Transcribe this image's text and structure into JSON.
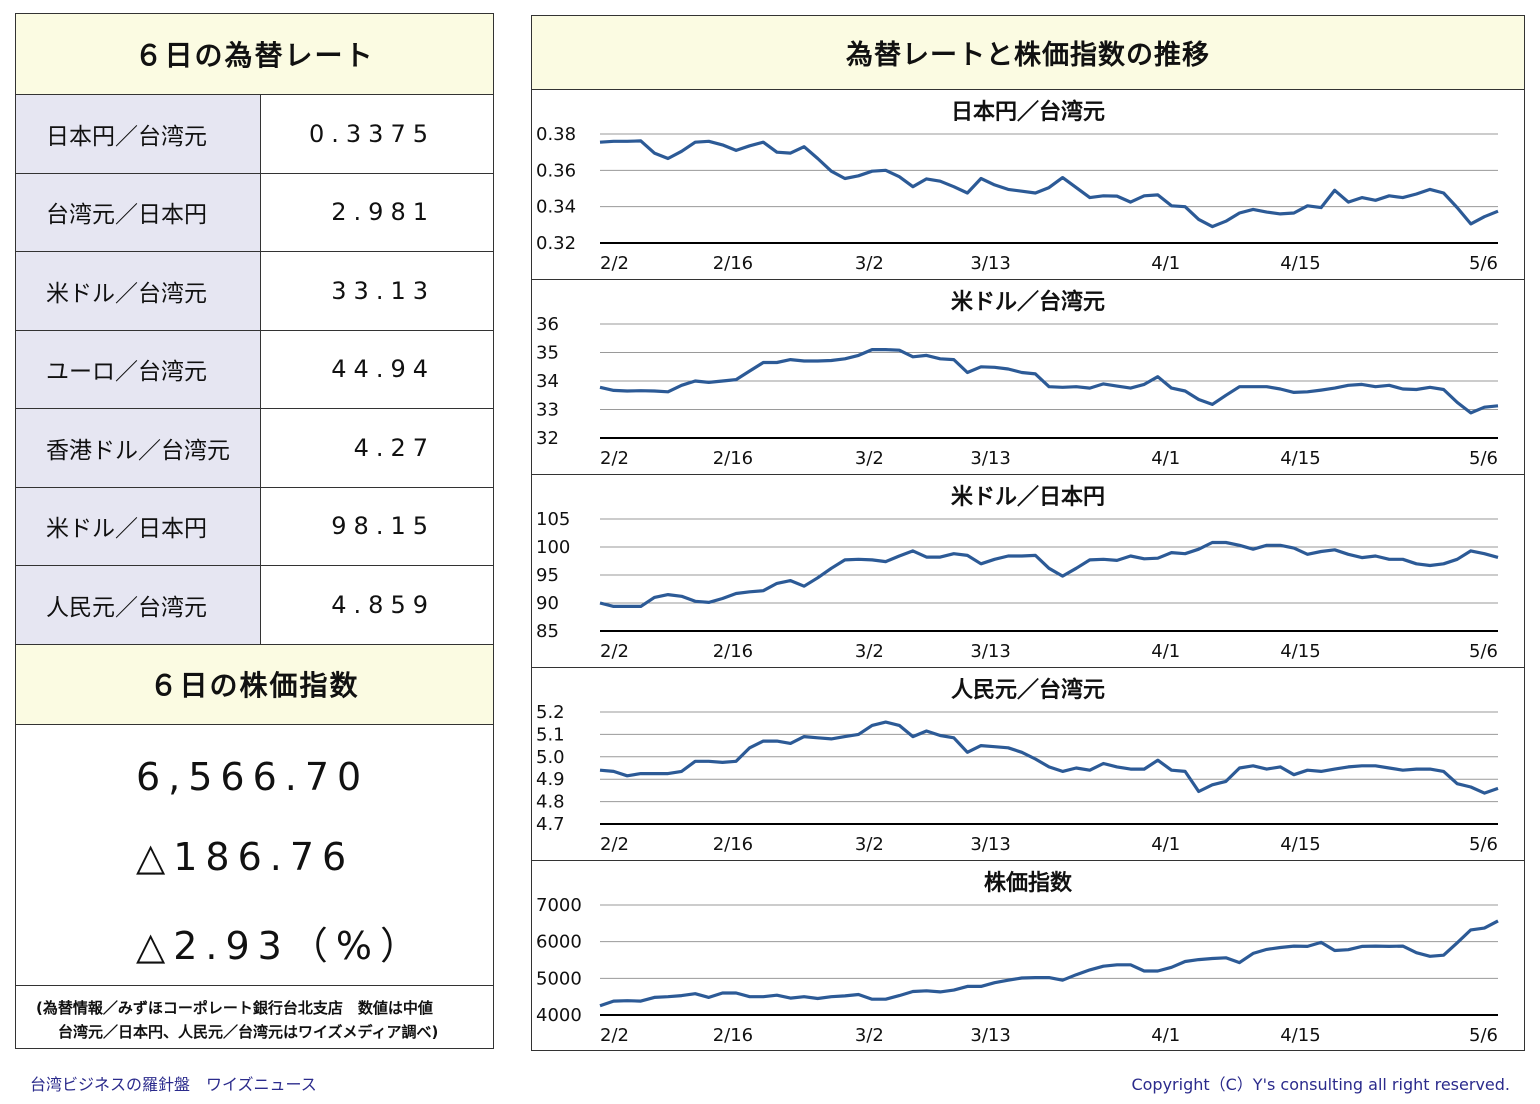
{
  "left": {
    "rates_title": "６日の為替レート",
    "rates": [
      {
        "label": "日本円／台湾元",
        "value": "0.3375"
      },
      {
        "label": "台湾元／日本円",
        "value": "2.981"
      },
      {
        "label": "米ドル／台湾元",
        "value": "33.13"
      },
      {
        "label": "ユーロ／台湾元",
        "value": "44.94"
      },
      {
        "label": "香港ドル／台湾元",
        "value": "4.27"
      },
      {
        "label": "米ドル／日本円",
        "value": "98.15"
      },
      {
        "label": "人民元／台湾元",
        "value": "4.859"
      }
    ],
    "stock_title": "６日の株価指数",
    "stock_value": "6,566.70",
    "stock_change": "△186.76",
    "stock_change_pct": "△2.93（%）",
    "note_line1": "(為替情報／みずほコーポレート銀行台北支店　数値は中値",
    "note_line2": "台湾元／日本円、人民元／台湾元はワイズメディア調べ)"
  },
  "right": {
    "title": "為替レートと株価指数の推移"
  },
  "footer": {
    "left": "台湾ビジネスの羅針盤　ワイズニュース",
    "right": "Copyright（C）Y's consulting all right reserved."
  },
  "colors": {
    "line": "#2c5a96",
    "header_bg": "#fbfbe2",
    "label_bg": "#e6e6f2",
    "footer_text": "#2b2b8c"
  },
  "chart_data": [
    {
      "type": "line",
      "title": "日本円／台湾元",
      "x_ticks": [
        "2/2",
        "2/16",
        "3/2",
        "3/13",
        "4/1",
        "4/15",
        "5/6"
      ],
      "y_ticks": [
        "0.38",
        "0.36",
        "0.34",
        "0.32"
      ],
      "ylim": [
        0.32,
        0.38
      ],
      "grid": true,
      "values": [
        0.3755,
        0.376,
        0.376,
        0.3762,
        0.3695,
        0.3665,
        0.3705,
        0.3755,
        0.376,
        0.374,
        0.371,
        0.3735,
        0.3755,
        0.37,
        0.3695,
        0.373,
        0.3665,
        0.3595,
        0.3555,
        0.357,
        0.3595,
        0.36,
        0.3565,
        0.351,
        0.3553,
        0.354,
        0.351,
        0.3475,
        0.3555,
        0.352,
        0.3495,
        0.3485,
        0.3475,
        0.3505,
        0.356,
        0.3505,
        0.345,
        0.346,
        0.3458,
        0.3425,
        0.346,
        0.3465,
        0.3405,
        0.34,
        0.333,
        0.329,
        0.332,
        0.3365,
        0.3385,
        0.337,
        0.336,
        0.3365,
        0.3405,
        0.3395,
        0.349,
        0.3425,
        0.345,
        0.3435,
        0.346,
        0.345,
        0.347,
        0.3495,
        0.3475,
        0.3395,
        0.3305,
        0.3345,
        0.3375
      ]
    },
    {
      "type": "line",
      "title": "米ドル／台湾元",
      "x_ticks": [
        "2/2",
        "2/16",
        "3/2",
        "3/13",
        "4/1",
        "4/15",
        "5/6"
      ],
      "y_ticks": [
        "36",
        "35",
        "34",
        "33",
        "32"
      ],
      "ylim": [
        32,
        36
      ],
      "grid": true,
      "values": [
        33.78,
        33.67,
        33.65,
        33.66,
        33.65,
        33.62,
        33.85,
        34.0,
        33.95,
        34.0,
        34.05,
        34.35,
        34.65,
        34.65,
        34.75,
        34.7,
        34.7,
        34.72,
        34.78,
        34.9,
        35.1,
        35.1,
        35.08,
        34.85,
        34.9,
        34.78,
        34.75,
        34.3,
        34.5,
        34.48,
        34.42,
        34.3,
        34.25,
        33.8,
        33.78,
        33.8,
        33.75,
        33.9,
        33.82,
        33.75,
        33.88,
        34.15,
        33.75,
        33.65,
        33.35,
        33.18,
        33.5,
        33.8,
        33.8,
        33.8,
        33.72,
        33.6,
        33.62,
        33.68,
        33.75,
        33.85,
        33.88,
        33.8,
        33.85,
        33.72,
        33.7,
        33.78,
        33.7,
        33.25,
        32.88,
        33.08,
        33.13
      ]
    },
    {
      "type": "line",
      "title": "米ドル／日本円",
      "x_ticks": [
        "2/2",
        "2/16",
        "3/2",
        "3/13",
        "4/1",
        "4/15",
        "5/6"
      ],
      "y_ticks": [
        "105",
        "100",
        "95",
        "90",
        "85"
      ],
      "ylim": [
        85,
        105
      ],
      "grid": true,
      "values": [
        90.0,
        89.4,
        89.4,
        89.4,
        91.0,
        91.5,
        91.2,
        90.3,
        90.1,
        90.8,
        91.7,
        92.0,
        92.2,
        93.5,
        94.0,
        93.0,
        94.5,
        96.2,
        97.7,
        97.8,
        97.7,
        97.4,
        98.4,
        99.3,
        98.2,
        98.2,
        98.8,
        98.5,
        97.0,
        97.8,
        98.4,
        98.4,
        98.5,
        96.2,
        94.8,
        96.2,
        97.7,
        97.8,
        97.6,
        98.4,
        97.9,
        98.0,
        99.0,
        98.8,
        99.6,
        100.8,
        100.8,
        100.3,
        99.6,
        100.3,
        100.3,
        99.8,
        98.7,
        99.2,
        99.5,
        98.7,
        98.1,
        98.4,
        97.8,
        97.8,
        97.0,
        96.7,
        97.0,
        97.8,
        99.3,
        98.8,
        98.15
      ]
    },
    {
      "type": "line",
      "title": "人民元／台湾元",
      "x_ticks": [
        "2/2",
        "2/16",
        "3/2",
        "3/13",
        "4/1",
        "4/15",
        "5/6"
      ],
      "y_ticks": [
        "5.2",
        "5.1",
        "5.0",
        "4.9",
        "4.8",
        "4.7"
      ],
      "ylim": [
        4.7,
        5.2
      ],
      "grid": true,
      "values": [
        4.94,
        4.935,
        4.915,
        4.925,
        4.925,
        4.925,
        4.935,
        4.98,
        4.98,
        4.975,
        4.98,
        5.04,
        5.07,
        5.07,
        5.06,
        5.09,
        5.085,
        5.08,
        5.09,
        5.1,
        5.14,
        5.155,
        5.14,
        5.09,
        5.115,
        5.095,
        5.085,
        5.02,
        5.05,
        5.045,
        5.04,
        5.02,
        4.99,
        4.955,
        4.935,
        4.95,
        4.94,
        4.97,
        4.955,
        4.945,
        4.945,
        4.985,
        4.94,
        4.935,
        4.845,
        4.875,
        4.89,
        4.95,
        4.96,
        4.945,
        4.955,
        4.92,
        4.94,
        4.935,
        4.945,
        4.955,
        4.96,
        4.96,
        4.95,
        4.94,
        4.945,
        4.945,
        4.935,
        4.88,
        4.865,
        4.838,
        4.859
      ]
    },
    {
      "type": "line",
      "title": "株価指数",
      "x_ticks": [
        "2/2",
        "2/16",
        "3/2",
        "3/13",
        "4/1",
        "4/15",
        "5/6"
      ],
      "y_ticks": [
        "7000",
        "6000",
        "5000",
        "4000"
      ],
      "ylim": [
        4000,
        7000
      ],
      "grid": true,
      "values": [
        4250,
        4380,
        4390,
        4380,
        4480,
        4500,
        4530,
        4580,
        4480,
        4600,
        4600,
        4500,
        4500,
        4540,
        4460,
        4500,
        4450,
        4500,
        4520,
        4560,
        4430,
        4430,
        4530,
        4640,
        4660,
        4630,
        4680,
        4780,
        4780,
        4880,
        4950,
        5010,
        5020,
        5020,
        4950,
        5100,
        5230,
        5330,
        5370,
        5370,
        5200,
        5200,
        5300,
        5460,
        5510,
        5540,
        5560,
        5430,
        5680,
        5790,
        5840,
        5880,
        5870,
        5980,
        5760,
        5780,
        5870,
        5880,
        5870,
        5880,
        5700,
        5600,
        5630,
        5970,
        6320,
        6370,
        6566.7
      ]
    }
  ]
}
